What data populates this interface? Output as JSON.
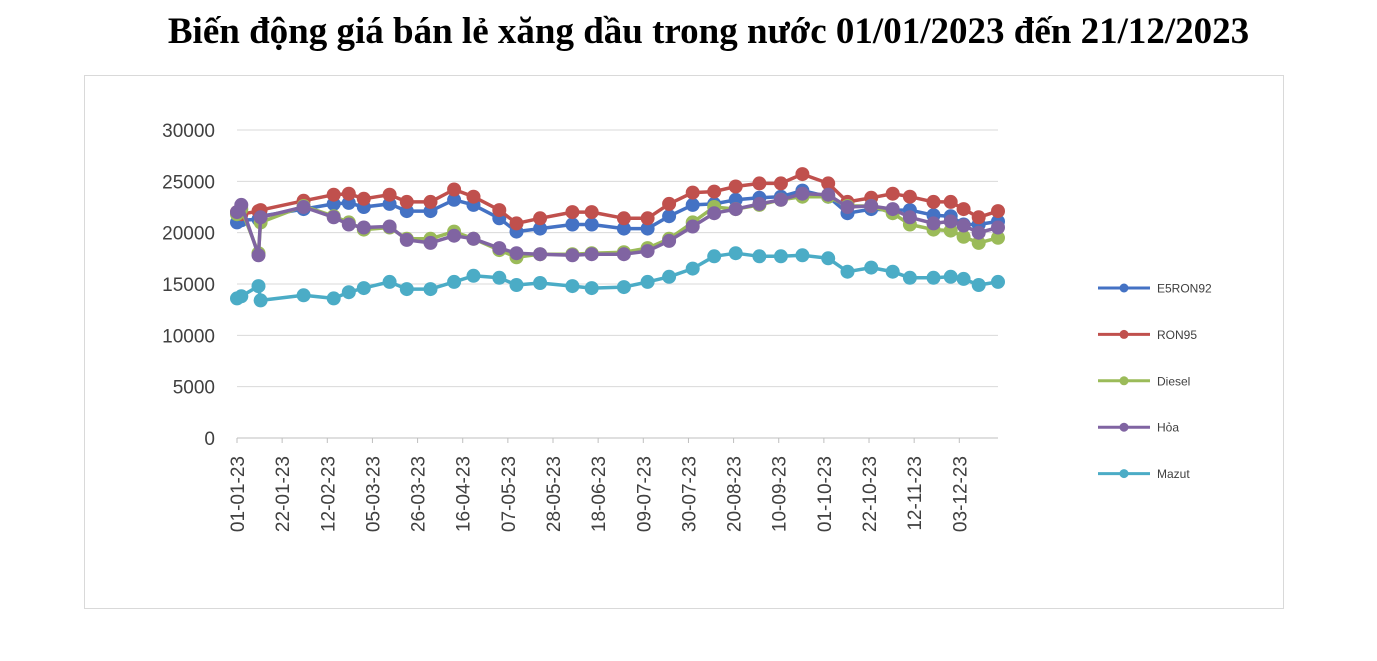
{
  "page": {
    "title": "Biến động giá bán lẻ xăng dầu trong nước 01/01/2023 đến 21/12/2023"
  },
  "chart_data": {
    "type": "line",
    "title": "Biến động giá bán lẻ xăng dầu trong nước 01/01/2023 đến 21/12/2023",
    "xlabel": "",
    "ylabel": "",
    "ylim": [
      0,
      30000
    ],
    "yticks": [
      0,
      5000,
      10000,
      15000,
      20000,
      25000,
      30000
    ],
    "xlim": [
      "2023-01-01",
      "2023-12-21"
    ],
    "xticks": [
      "01-01-23",
      "22-01-23",
      "12-02-23",
      "05-03-23",
      "26-03-23",
      "16-04-23",
      "07-05-23",
      "28-05-23",
      "18-06-23",
      "09-07-23",
      "30-07-23",
      "20-08-23",
      "10-09-23",
      "01-10-23",
      "22-10-23",
      "12-11-23",
      "03-12-23"
    ],
    "grid": true,
    "legend_position": "right",
    "x": [
      "2023-01-01",
      "2023-01-03",
      "2023-01-11",
      "2023-01-12",
      "2023-02-01",
      "2023-02-15",
      "2023-02-22",
      "2023-03-01",
      "2023-03-13",
      "2023-03-21",
      "2023-04-01",
      "2023-04-12",
      "2023-04-21",
      "2023-05-03",
      "2023-05-11",
      "2023-05-22",
      "2023-06-06",
      "2023-06-15",
      "2023-06-30",
      "2023-07-11",
      "2023-07-21",
      "2023-08-01",
      "2023-08-11",
      "2023-08-21",
      "2023-09-01",
      "2023-09-11",
      "2023-09-21",
      "2023-10-03",
      "2023-10-12",
      "2023-10-23",
      "2023-11-02",
      "2023-11-10",
      "2023-11-21",
      "2023-11-29",
      "2023-12-05",
      "2023-12-12",
      "2023-12-21"
    ],
    "series": [
      {
        "name": "E5RON92",
        "color": "#4472C4",
        "values": [
          21000,
          21200,
          21300,
          21600,
          22300,
          22800,
          22900,
          22500,
          22800,
          22100,
          22100,
          23200,
          22700,
          21400,
          20100,
          20400,
          20800,
          20800,
          20400,
          20400,
          21600,
          22700,
          22800,
          23200,
          23400,
          23500,
          24100,
          23500,
          21900,
          22300,
          22200,
          22200,
          21700,
          21600,
          20800,
          20800,
          21100
        ]
      },
      {
        "name": "RON95",
        "color": "#C0504D",
        "values": [
          22000,
          21800,
          22100,
          22200,
          23100,
          23700,
          23800,
          23300,
          23700,
          23000,
          23000,
          24200,
          23500,
          22200,
          20900,
          21400,
          22000,
          22000,
          21400,
          21400,
          22800,
          23900,
          24000,
          24500,
          24800,
          24800,
          25700,
          24800,
          23000,
          23400,
          23800,
          23500,
          23000,
          23000,
          22300,
          21500,
          22100
        ]
      },
      {
        "name": "Diesel",
        "color": "#9BBB59",
        "values": [
          21800,
          22300,
          18000,
          21000,
          22600,
          21600,
          21000,
          20300,
          20500,
          19400,
          19400,
          20100,
          19400,
          18300,
          17600,
          17900,
          17900,
          18000,
          18100,
          18500,
          19400,
          21000,
          22500,
          22300,
          22700,
          23200,
          23500,
          23500,
          22600,
          22600,
          21900,
          20800,
          20300,
          20200,
          19600,
          19000,
          19500
        ]
      },
      {
        "name": "Hỏa",
        "color": "#8064A2",
        "values": [
          22000,
          22700,
          17800,
          21500,
          22500,
          21500,
          20800,
          20500,
          20600,
          19300,
          19000,
          19700,
          19400,
          18500,
          18000,
          17900,
          17800,
          17900,
          17900,
          18200,
          19200,
          20600,
          21900,
          22300,
          22800,
          23200,
          23800,
          23700,
          22500,
          22600,
          22300,
          21500,
          20900,
          21100,
          20700,
          20000,
          20500
        ]
      },
      {
        "name": "Mazut",
        "color": "#4BACC6",
        "values": [
          13600,
          13800,
          14800,
          13400,
          13900,
          13600,
          14200,
          14600,
          15200,
          14500,
          14500,
          15200,
          15800,
          15600,
          14900,
          15100,
          14800,
          14600,
          14700,
          15200,
          15700,
          16500,
          17700,
          18000,
          17700,
          17700,
          17800,
          17500,
          16200,
          16600,
          16200,
          15600,
          15600,
          15700,
          15500,
          14900,
          15200
        ]
      }
    ]
  }
}
